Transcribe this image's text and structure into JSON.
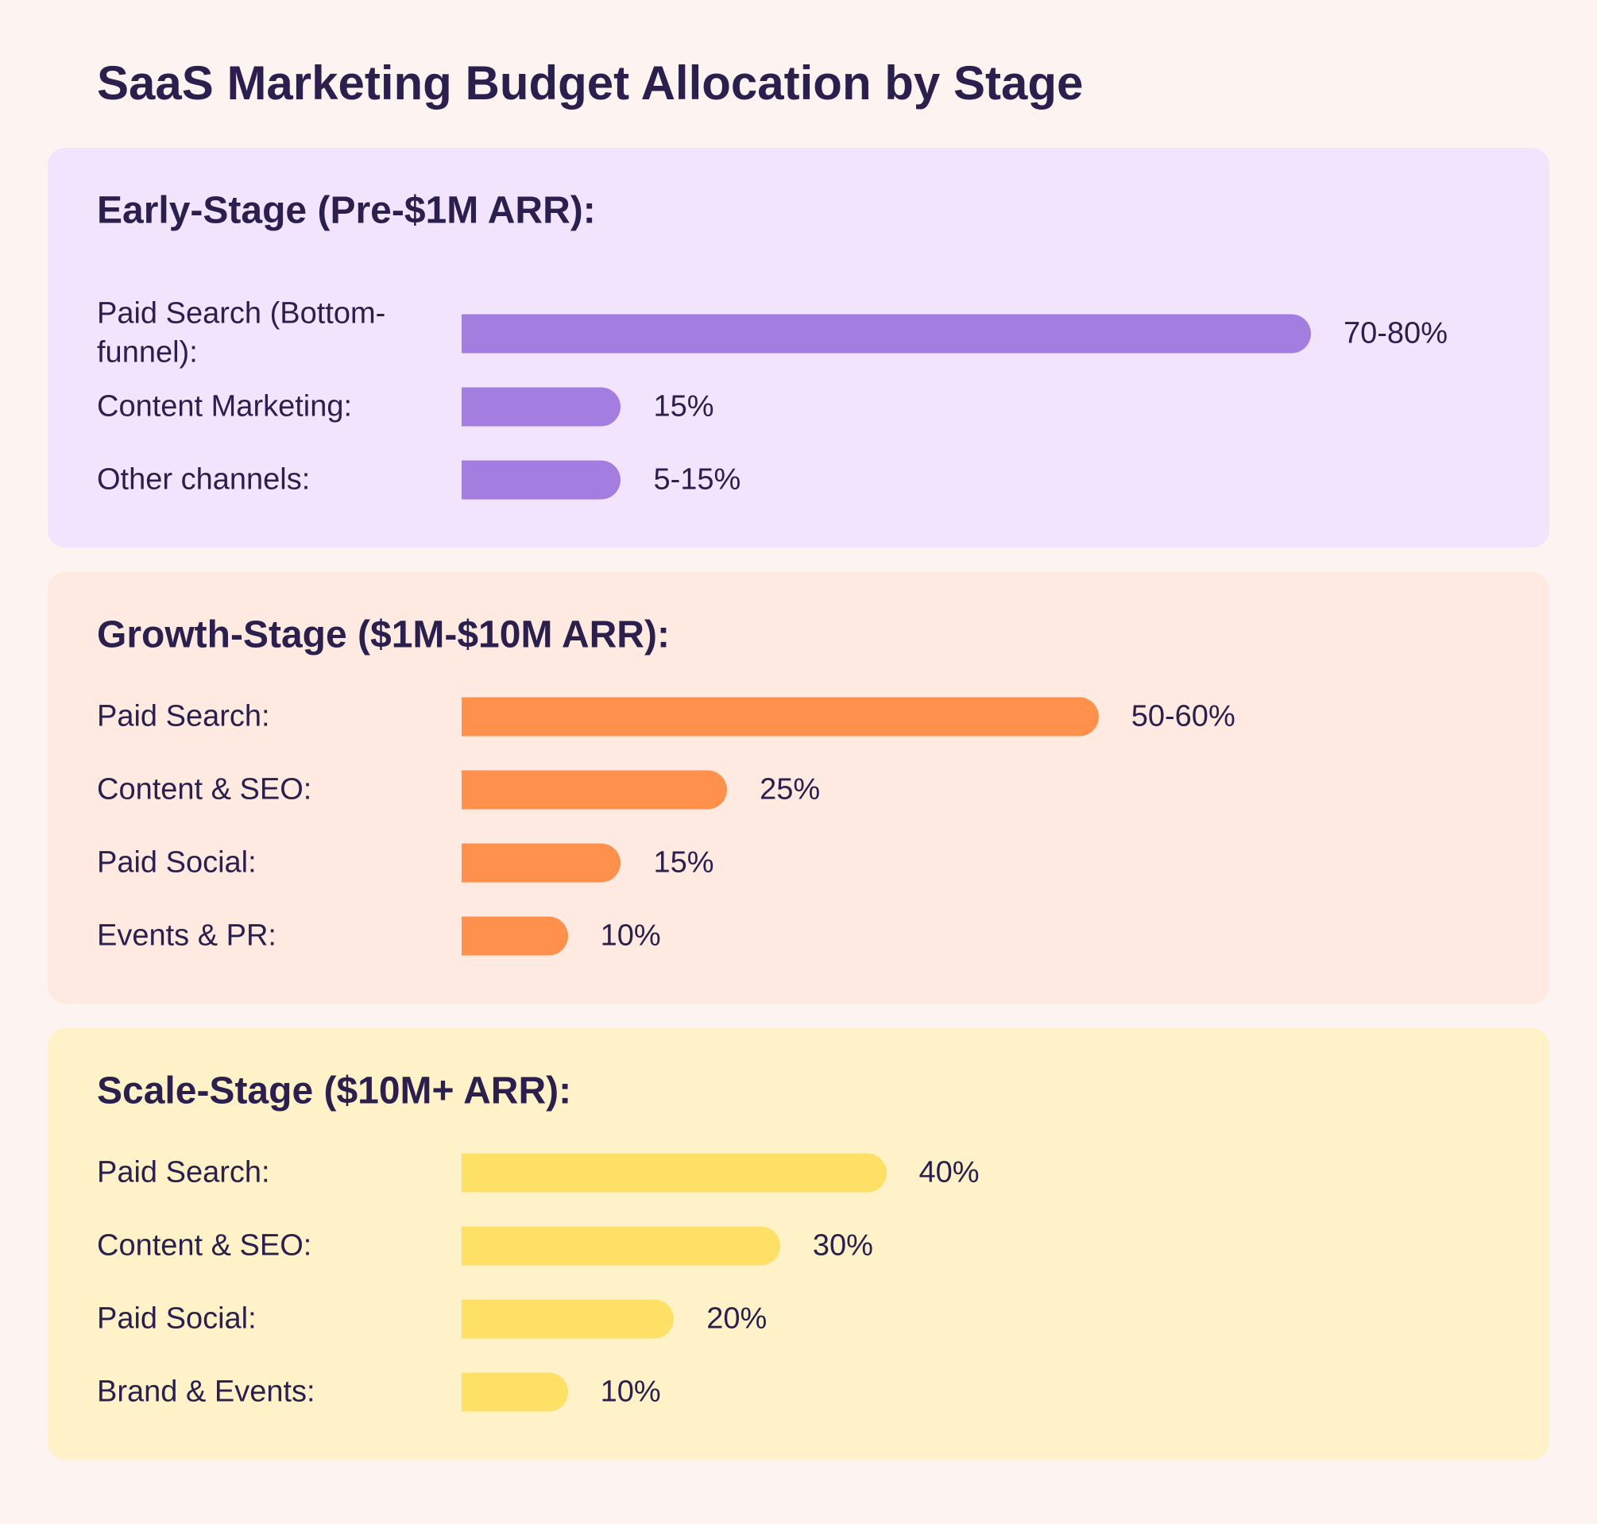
{
  "chart_data": {
    "type": "bar",
    "title": "SaaS Marketing Budget Allocation by Stage",
    "panels": [
      {
        "title": "Early-Stage (Pre-$1M ARR):",
        "color": "#a47de0",
        "background": "#f1e4fc",
        "categories": [
          "Paid Search (Bottom-funnel):",
          "Content Marketing:",
          "Other channels:"
        ],
        "values": [
          [
            70,
            80
          ],
          15,
          [
            5,
            15
          ]
        ],
        "value_labels": [
          "70-80%",
          "15%",
          "5-15%"
        ]
      },
      {
        "title": "Growth-Stage ($1M-$10M ARR):",
        "color": "#ff914d",
        "background": "#ffeae1",
        "categories": [
          "Paid Search:",
          "Content & SEO:",
          "Paid Social:",
          "Events & PR:"
        ],
        "values": [
          [
            50,
            60
          ],
          25,
          15,
          10
        ],
        "value_labels": [
          "50-60%",
          "25%",
          "15%",
          "10%"
        ]
      },
      {
        "title": "Scale-Stage ($10M+ ARR):",
        "color": "#ffe066",
        "background": "#fff2c9",
        "categories": [
          "Paid Search:",
          "Content & SEO:",
          "Paid Social:",
          "Brand & Events:"
        ],
        "values": [
          40,
          30,
          20,
          10
        ],
        "value_labels": [
          "40%",
          "30%",
          "20%",
          "10%"
        ]
      }
    ]
  }
}
